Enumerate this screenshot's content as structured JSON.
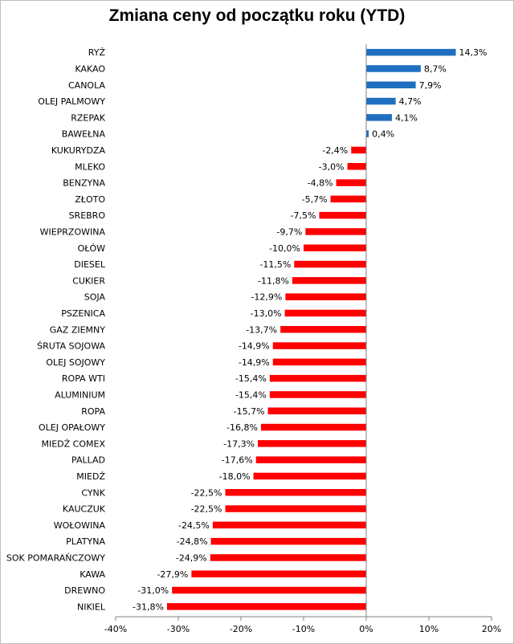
{
  "chart_data": {
    "type": "bar",
    "orientation": "horizontal",
    "title": "Zmiana ceny od początku roku (YTD)",
    "categories": [
      "RYŻ",
      "KAKAO",
      "CANOLA",
      "OLEJ PALMOWY",
      "RZEPAK",
      "BAWEŁNA",
      "KUKURYDZA",
      "MLEKO",
      "BENZYNA",
      "ZŁOTO",
      "SREBRO",
      "WIEPRZOWINA",
      "OŁÓW",
      "DIESEL",
      "CUKIER",
      "SOJA",
      "PSZENICA",
      "GAZ ZIEMNY",
      "ŚRUTA SOJOWA",
      "OLEJ SOJOWY",
      "ROPA WTI",
      "ALUMINIUM",
      "ROPA",
      "OLEJ OPAŁOWY",
      "MIEDŹ COMEX",
      "PALLAD",
      "MIEDŹ",
      "CYNK",
      "KAUCZUK",
      "WOŁOWINA",
      "PLATYNA",
      "SOK POMARAŃCZOWY",
      "KAWA",
      "DREWNO",
      "NIKIEL"
    ],
    "values": [
      14.3,
      8.7,
      7.9,
      4.7,
      4.1,
      0.4,
      -2.4,
      -3.0,
      -4.8,
      -5.7,
      -7.5,
      -9.7,
      -10.0,
      -11.5,
      -11.8,
      -12.9,
      -13.0,
      -13.7,
      -14.9,
      -14.9,
      -15.4,
      -15.4,
      -15.7,
      -16.8,
      -17.3,
      -17.6,
      -18.0,
      -22.5,
      -22.5,
      -24.5,
      -24.8,
      -24.9,
      -27.9,
      -31.0,
      -31.8
    ],
    "value_labels": [
      "14,3%",
      "8,7%",
      "7,9%",
      "4,7%",
      "4,1%",
      "0,4%",
      "-2,4%",
      "-3,0%",
      "-4,8%",
      "-5,7%",
      "-7,5%",
      "-9,7%",
      "-10,0%",
      "-11,5%",
      "-11,8%",
      "-12,9%",
      "-13,0%",
      "-13,7%",
      "-14,9%",
      "-14,9%",
      "-15,4%",
      "-15,4%",
      "-15,7%",
      "-16,8%",
      "-17,3%",
      "-17,6%",
      "-18,0%",
      "-22,5%",
      "-22,5%",
      "-24,5%",
      "-24,8%",
      "-24,9%",
      "-27,9%",
      "-31,0%",
      "-31,8%"
    ],
    "xlim": [
      -40,
      20
    ],
    "xticks": [
      -40,
      -30,
      -20,
      -10,
      0,
      10,
      20
    ],
    "xtick_labels": [
      "-40%",
      "-30%",
      "-20%",
      "-10%",
      "0%",
      "10%",
      "20%"
    ],
    "grid": false,
    "colors": {
      "positive": "#1f6fc0",
      "negative": "#ff0000"
    }
  }
}
